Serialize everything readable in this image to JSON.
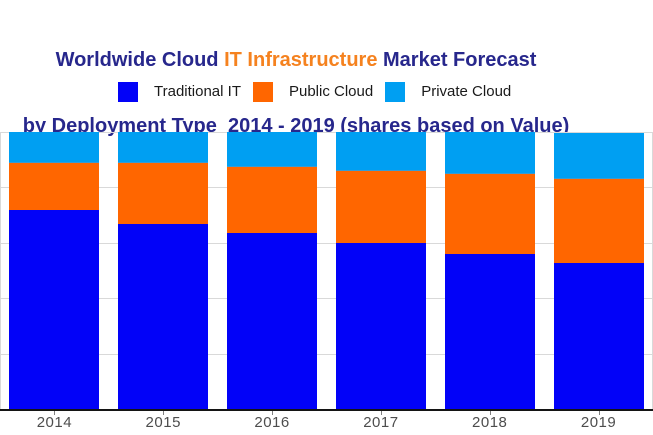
{
  "title": {
    "line1_part1": "Worldwide Cloud ",
    "line1_highlight": "IT Infrastructure",
    "line1_part2": " Market Forecast",
    "line2": "by Deployment Type  2014 - 2019 (shares based on Value)",
    "navy_color": "#27278C",
    "highlight_color": "#F5821F"
  },
  "legend": {
    "items": [
      {
        "label": "Traditional IT",
        "color": "#0202F8"
      },
      {
        "label": "Public Cloud",
        "color": "#FF6600"
      },
      {
        "label": "Private Cloud",
        "color": "#009FF2"
      }
    ]
  },
  "chart_data": {
    "type": "bar",
    "stacked": true,
    "unit": "share of value, %",
    "categories": [
      "2014",
      "2015",
      "2016",
      "2017",
      "2018",
      "2019"
    ],
    "series": [
      {
        "name": "Traditional IT",
        "color": "#0202F8",
        "values": [
          72,
          67,
          63.5,
          60,
          56,
          53
        ]
      },
      {
        "name": "Public Cloud",
        "color": "#FF6600",
        "values": [
          17,
          22,
          24,
          26,
          29,
          30
        ]
      },
      {
        "name": "Private Cloud",
        "color": "#009FF2",
        "values": [
          11,
          11,
          12.5,
          14,
          15,
          16.5
        ]
      }
    ],
    "ylim": [
      0,
      100
    ],
    "gridline_values": [
      20,
      40,
      60,
      80,
      100
    ],
    "grid_color": "#D9D9D9",
    "axis_color": "#141414",
    "tick_label_color": "#4D4D4D",
    "legend_position": "top",
    "value_axis_labels_visible": false
  }
}
